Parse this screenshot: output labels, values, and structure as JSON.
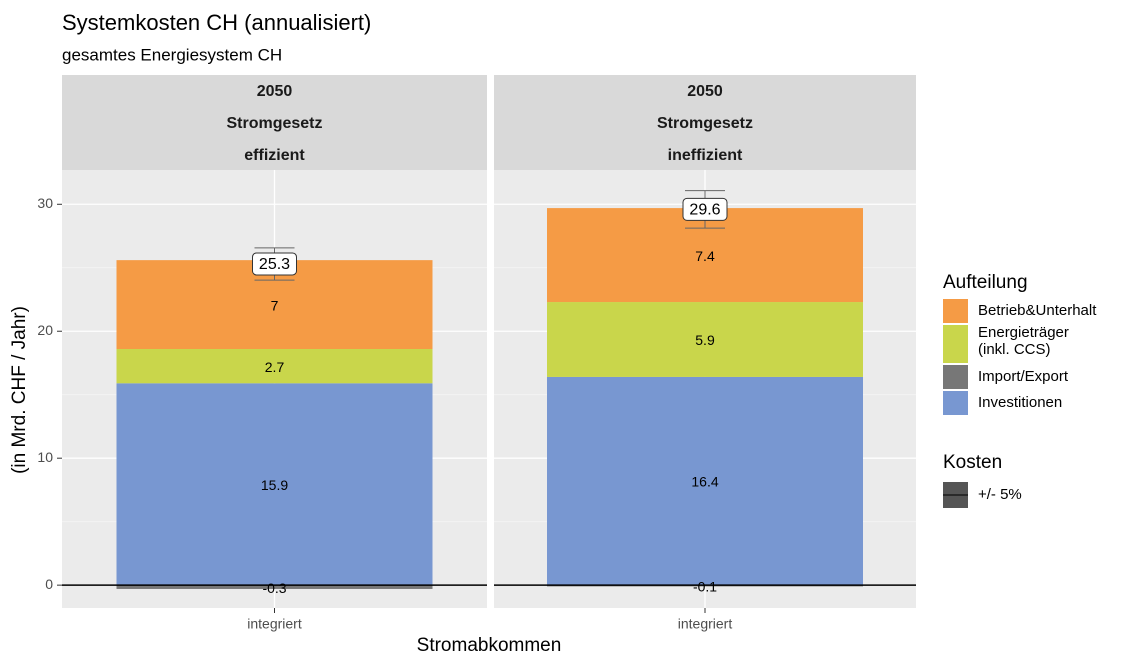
{
  "chart_data": {
    "type": "bar",
    "stacked": true,
    "title": "Systemkosten CH (annualisiert)",
    "subtitle": "gesamtes Energiesystem CH",
    "ylabel": "(in Mrd. CHF / Jahr)",
    "xlabel": "Stromabkommen",
    "legend_title": "Aufteilung",
    "facets": [
      {
        "strip": [
          "2050",
          "Stromgesetz",
          "effizient"
        ],
        "category": "integriert"
      },
      {
        "strip": [
          "2050",
          "Stromgesetz",
          "ineffizient"
        ],
        "category": "integriert"
      }
    ],
    "series": [
      {
        "name": "Betrieb&Unterhalt",
        "color": "#f59b45",
        "values": [
          7,
          7.4
        ]
      },
      {
        "name": "Energieträger\n(inkl. CCS)",
        "color": "#c9d64b",
        "values": [
          2.7,
          5.9
        ]
      },
      {
        "name": "Import/Export",
        "color": "#777777",
        "values": [
          -0.3,
          -0.1
        ]
      },
      {
        "name": "Investitionen",
        "color": "#7897d1",
        "values": [
          15.9,
          16.4
        ]
      }
    ],
    "totals": [
      25.3,
      29.6
    ],
    "error_legend_title": "Kosten",
    "error_legend_label": "+/- 5%",
    "errors": [
      1.27,
      1.48
    ],
    "reference_line": 0,
    "ylim": [
      -1.8,
      32.7
    ],
    "yticks": [
      0,
      10,
      20,
      30
    ],
    "grid": true
  }
}
